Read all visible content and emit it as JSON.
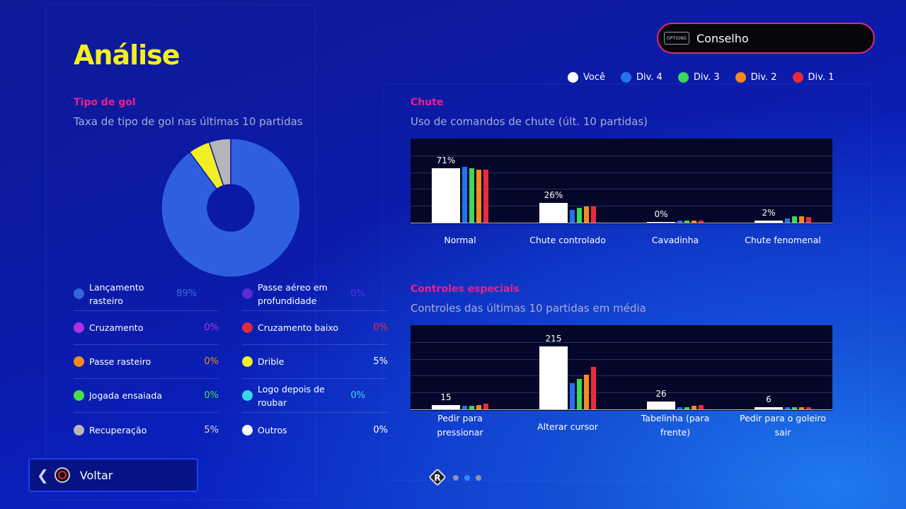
{
  "page": {
    "title": "Análise"
  },
  "advice": {
    "badge": "OPTIONS",
    "label": "Conselho"
  },
  "legend": [
    {
      "name": "Você",
      "color": "#ffffff"
    },
    {
      "name": "Div. 4",
      "color": "#2472ee"
    },
    {
      "name": "Div. 3",
      "color": "#3ed75c"
    },
    {
      "name": "Div. 2",
      "color": "#f48a1c"
    },
    {
      "name": "Div. 1",
      "color": "#ea2c3a"
    }
  ],
  "goal_type": {
    "title": "Tipo de gol",
    "subtitle": "Taxa de tipo de gol nas últimas 10 partidas",
    "left_items": [
      {
        "label": "Lançamento rasteiro",
        "value": "89%",
        "color": "#3663e0",
        "value_color": "#3a68e6"
      },
      {
        "label": "Cruzamento",
        "value": "0%",
        "color": "#b030e0",
        "value_color": "#b334e6"
      },
      {
        "label": "Passe rasteiro",
        "value": "0%",
        "color": "#f28a1e",
        "value_color": "#f28a1e"
      },
      {
        "label": "Jogada ensaiada",
        "value": "0%",
        "color": "#46e04a",
        "value_color": "#46e04a"
      },
      {
        "label": "Recuperação",
        "value": "5%",
        "color": "#b8b8bc",
        "value_color": "#dcdce0"
      }
    ],
    "right_items": [
      {
        "label": "Passe aéreo em profundidade",
        "value": "0%",
        "color": "#5a2ad8",
        "value_color": "#5d30e0"
      },
      {
        "label": "Cruzamento baixo",
        "value": "0%",
        "color": "#e22a3c",
        "value_color": "#ec3246"
      },
      {
        "label": "Drible",
        "value": "5%",
        "color": "#f2ee2a",
        "value_color": "#ffffff"
      },
      {
        "label": "Logo depois de roubar",
        "value": "0%",
        "color": "#38d8e6",
        "value_color": "#3ed7ec"
      },
      {
        "label": "Outros",
        "value": "0%",
        "color": "#ffffff",
        "value_color": "#ffffff"
      }
    ]
  },
  "chart_data": [
    {
      "type": "bar",
      "title": "Chute",
      "subtitle": "Uso de comandos de chute (últ. 10 partidas)",
      "categories": [
        "Normal",
        "Chute controlado",
        "Cavadinha",
        "Chute fenomenal"
      ],
      "labels": [
        "71%",
        "26%",
        "0%",
        "2%"
      ],
      "ylim": [
        0,
        100
      ],
      "series": [
        {
          "name": "Você",
          "color": "#ffffff",
          "values": [
            71,
            26,
            0,
            2
          ]
        },
        {
          "name": "Div. 4",
          "color": "#2472ee",
          "values": [
            73,
            17,
            1,
            6
          ]
        },
        {
          "name": "Div. 3",
          "color": "#3ed75c",
          "values": [
            71,
            19,
            1,
            8
          ]
        },
        {
          "name": "Div. 2",
          "color": "#f48a1c",
          "values": [
            69,
            21,
            1,
            8
          ]
        },
        {
          "name": "Div. 1",
          "color": "#ea2c3a",
          "values": [
            69,
            21,
            1,
            7
          ]
        }
      ]
    },
    {
      "type": "bar",
      "title": "Controles especiais",
      "subtitle": "Controles das últimas 10 partidas em média",
      "categories": [
        "Pedir para pressionar",
        "Alterar cursor",
        "Tabelinha (para frente)",
        "Pedir para o goleiro sair"
      ],
      "labels": [
        "15",
        "215",
        "26",
        "6"
      ],
      "ylim": [
        0,
        260
      ],
      "series": [
        {
          "name": "Você",
          "color": "#ffffff",
          "values": [
            15,
            215,
            26,
            6
          ]
        },
        {
          "name": "Div. 4",
          "color": "#2472ee",
          "values": [
            13,
            88,
            8,
            3
          ]
        },
        {
          "name": "Div. 3",
          "color": "#3ed75c",
          "values": [
            12,
            103,
            8,
            3
          ]
        },
        {
          "name": "Div. 2",
          "color": "#f48a1c",
          "values": [
            14,
            118,
            12,
            3
          ]
        },
        {
          "name": "Div. 1",
          "color": "#ea2c3a",
          "values": [
            19,
            145,
            15,
            2
          ]
        }
      ]
    }
  ],
  "donut": {
    "segments": [
      {
        "value": 89,
        "color": "#2e5fe0"
      },
      {
        "value": 5,
        "color": "#f2ee24"
      },
      {
        "value": 5,
        "color": "#b5b5ba"
      }
    ]
  },
  "footer": {
    "back_label": "Voltar",
    "page_button": "R",
    "page_count": 3,
    "active_page": 2
  }
}
